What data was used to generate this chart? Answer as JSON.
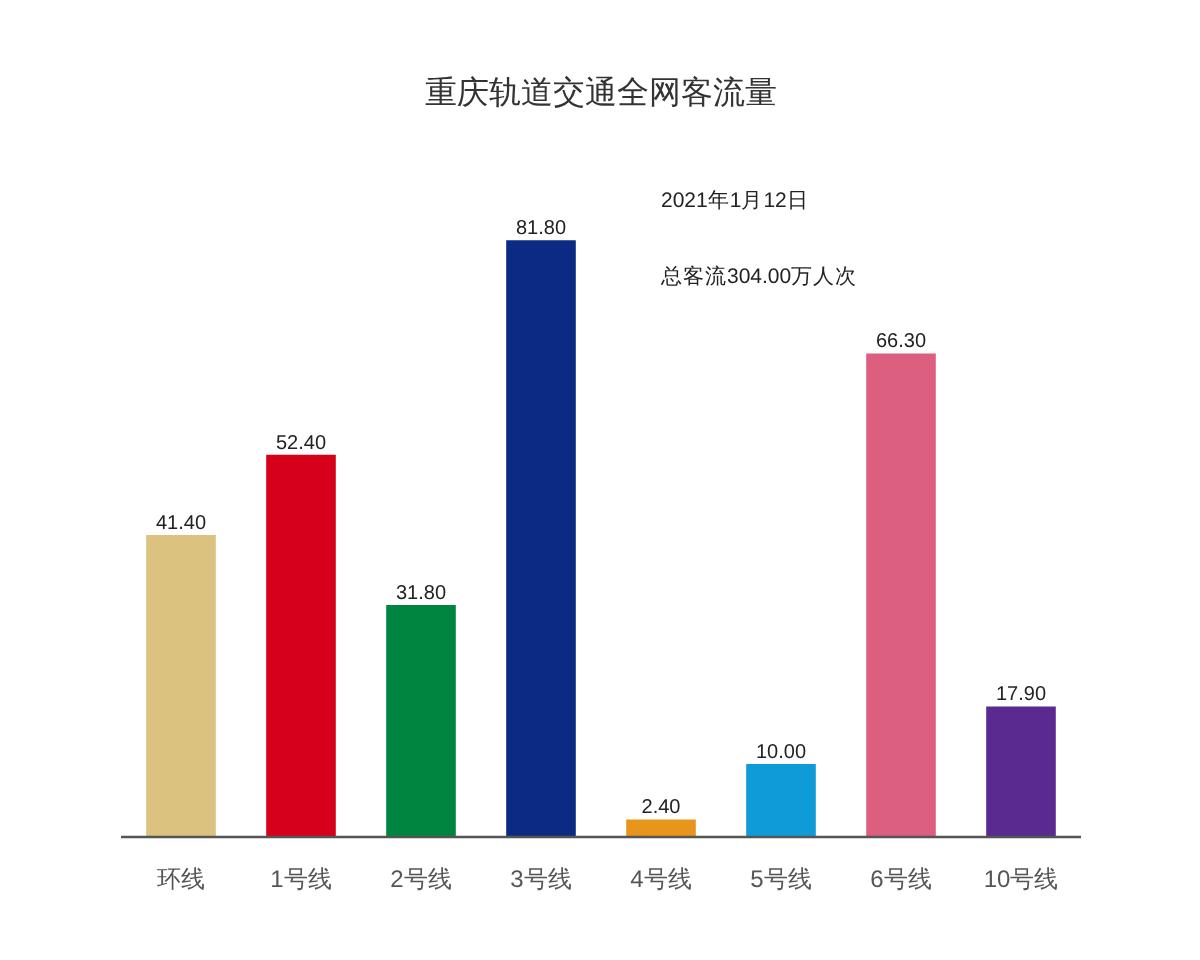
{
  "chart_data": {
    "type": "bar",
    "title": "重庆轨道交通全网客流量",
    "annotations": [
      "2021年1月12日",
      "总客流304.00万人次"
    ],
    "categories": [
      "环线",
      "1号线",
      "2号线",
      "3号线",
      "4号线",
      "5号线",
      "6号线",
      "10号线"
    ],
    "values": [
      41.4,
      52.4,
      31.8,
      81.8,
      2.4,
      10.0,
      66.3,
      17.9
    ],
    "colors": [
      "#dcc27f",
      "#d7001b",
      "#008540",
      "#0b2a83",
      "#e8961b",
      "#0e9bd8",
      "#dc5f80",
      "#5a2a90"
    ],
    "value_labels": [
      "41.40",
      "52.40",
      "31.80",
      "81.80",
      "2.40",
      "10.00",
      "66.30",
      "17.90"
    ]
  }
}
